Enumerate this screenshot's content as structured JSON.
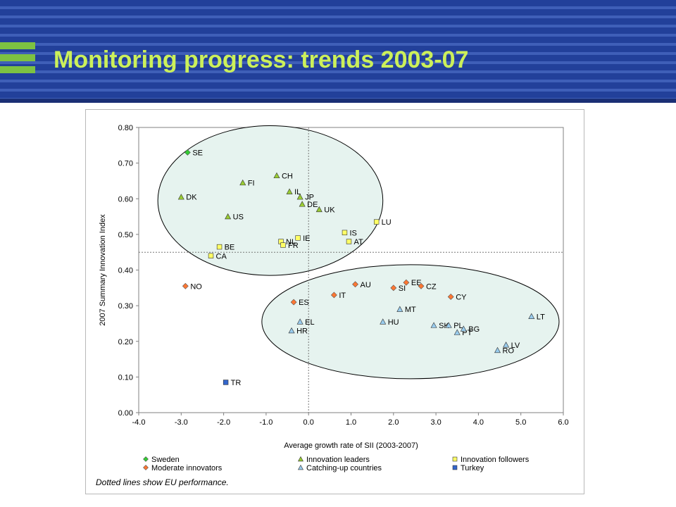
{
  "header": {
    "title": "Monitoring progress: trends 2003-07"
  },
  "chart_data": {
    "type": "scatter",
    "xlabel": "Average growth rate of SII (2003-2007)",
    "ylabel": "2007 Summary Innovation Index",
    "xlim": [
      -4.0,
      6.0
    ],
    "ylim": [
      0.0,
      0.8
    ],
    "xticks": [
      "-4.0",
      "-3.0",
      "-2.0",
      "-1.0",
      "0.0",
      "1.0",
      "2.0",
      "3.0",
      "4.0",
      "5.0",
      "6.0"
    ],
    "yticks": [
      "0.00",
      "0.10",
      "0.20",
      "0.30",
      "0.40",
      "0.50",
      "0.60",
      "0.70",
      "0.80"
    ],
    "reference_lines": {
      "x": 0.0,
      "y": 0.45,
      "style": "dotted"
    },
    "note": "Dotted lines show EU performance.",
    "legend_position": "bottom",
    "groups": [
      {
        "name": "Sweden",
        "marker": "diamond",
        "color": "#33cc33"
      },
      {
        "name": "Innovation leaders",
        "marker": "triangle",
        "color": "#99cc33"
      },
      {
        "name": "Innovation followers",
        "marker": "square",
        "color": "#ffff66"
      },
      {
        "name": "Moderate innovators",
        "marker": "diamond",
        "color": "#ff7733"
      },
      {
        "name": "Catching-up countries",
        "marker": "triangle",
        "color": "#99ccee"
      },
      {
        "name": "Turkey",
        "marker": "square",
        "color": "#3366cc"
      }
    ],
    "points": [
      {
        "label": "SE",
        "group": 0,
        "x": -2.85,
        "y": 0.73
      },
      {
        "label": "CH",
        "group": 1,
        "x": -0.75,
        "y": 0.665
      },
      {
        "label": "FI",
        "group": 1,
        "x": -1.55,
        "y": 0.645
      },
      {
        "label": "IL",
        "group": 1,
        "x": -0.45,
        "y": 0.62
      },
      {
        "label": "DK",
        "group": 1,
        "x": -3.0,
        "y": 0.605
      },
      {
        "label": "JP",
        "group": 1,
        "x": -0.2,
        "y": 0.605
      },
      {
        "label": "DE",
        "group": 1,
        "x": -0.15,
        "y": 0.585
      },
      {
        "label": "UK",
        "group": 1,
        "x": 0.25,
        "y": 0.57
      },
      {
        "label": "US",
        "group": 1,
        "x": -1.9,
        "y": 0.55
      },
      {
        "label": "LU",
        "group": 2,
        "x": 1.6,
        "y": 0.535
      },
      {
        "label": "IS",
        "group": 2,
        "x": 0.85,
        "y": 0.505
      },
      {
        "label": "IE",
        "group": 2,
        "x": -0.25,
        "y": 0.49
      },
      {
        "label": "NL",
        "group": 2,
        "x": -0.65,
        "y": 0.48
      },
      {
        "label": "AT",
        "group": 2,
        "x": 0.95,
        "y": 0.48
      },
      {
        "label": "FR",
        "group": 2,
        "x": -0.6,
        "y": 0.47
      },
      {
        "label": "BE",
        "group": 2,
        "x": -2.1,
        "y": 0.465
      },
      {
        "label": "CA",
        "group": 2,
        "x": -2.3,
        "y": 0.44
      },
      {
        "label": "NO",
        "group": 3,
        "x": -2.9,
        "y": 0.355
      },
      {
        "label": "EE",
        "group": 3,
        "x": 2.3,
        "y": 0.365
      },
      {
        "label": "AU",
        "group": 3,
        "x": 1.1,
        "y": 0.36
      },
      {
        "label": "CZ",
        "group": 3,
        "x": 2.65,
        "y": 0.355
      },
      {
        "label": "SI",
        "group": 3,
        "x": 2.0,
        "y": 0.35
      },
      {
        "label": "IT",
        "group": 3,
        "x": 0.6,
        "y": 0.33
      },
      {
        "label": "CY",
        "group": 3,
        "x": 3.35,
        "y": 0.325
      },
      {
        "label": "ES",
        "group": 3,
        "x": -0.35,
        "y": 0.31
      },
      {
        "label": "MT",
        "group": 4,
        "x": 2.15,
        "y": 0.29
      },
      {
        "label": "LT",
        "group": 4,
        "x": 5.25,
        "y": 0.27
      },
      {
        "label": "EL",
        "group": 4,
        "x": -0.2,
        "y": 0.255
      },
      {
        "label": "HU",
        "group": 4,
        "x": 1.75,
        "y": 0.255
      },
      {
        "label": "SK",
        "group": 4,
        "x": 2.95,
        "y": 0.245
      },
      {
        "label": "PL",
        "group": 4,
        "x": 3.3,
        "y": 0.245
      },
      {
        "label": "PT",
        "group": 4,
        "x": 3.5,
        "y": 0.225
      },
      {
        "label": "BG",
        "group": 4,
        "x": 3.65,
        "y": 0.235
      },
      {
        "label": "HR",
        "group": 4,
        "x": -0.4,
        "y": 0.23
      },
      {
        "label": "LV",
        "group": 4,
        "x": 4.65,
        "y": 0.19
      },
      {
        "label": "RO",
        "group": 4,
        "x": 4.45,
        "y": 0.175
      },
      {
        "label": "TR",
        "group": 5,
        "x": -1.95,
        "y": 0.085
      }
    ],
    "ellipses": [
      {
        "name": "upper-cluster",
        "cx": -0.9,
        "cy": 0.595,
        "rx": 2.65,
        "ry": 0.21
      },
      {
        "name": "lower-cluster",
        "cx": 2.4,
        "cy": 0.255,
        "rx": 3.5,
        "ry": 0.16
      }
    ]
  }
}
